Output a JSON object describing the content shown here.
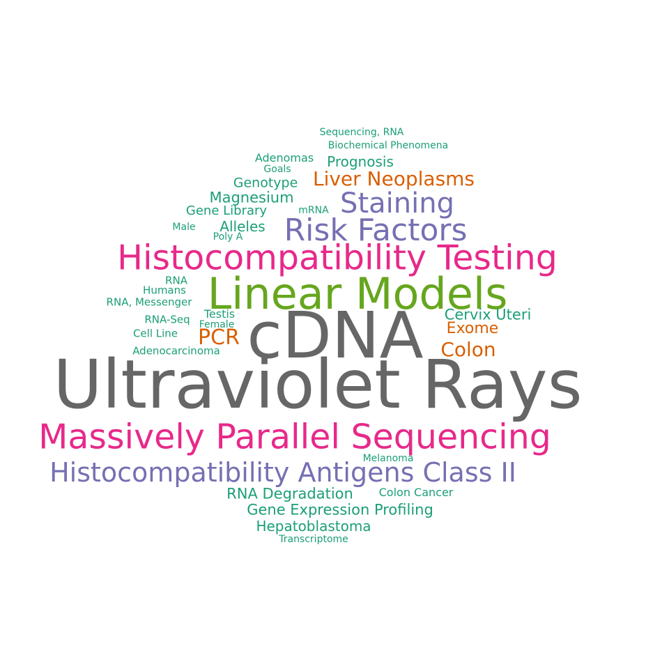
{
  "colors": {
    "gray": "#666666",
    "green": "#66a61e",
    "magenta": "#e7298a",
    "purple": "#7570b3",
    "orange": "#d95f02",
    "teal": "#1b9e77"
  },
  "words": [
    {
      "text": "Ultraviolet Rays",
      "color": "gray"
    },
    {
      "text": "cDNA",
      "color": "gray"
    },
    {
      "text": "Linear Models",
      "color": "green"
    },
    {
      "text": "Histocompatibility Testing",
      "color": "magenta"
    },
    {
      "text": "Massively Parallel Sequencing",
      "color": "magenta"
    },
    {
      "text": "Histocompatibility Antigens Class II",
      "color": "purple"
    },
    {
      "text": "Risk Factors",
      "color": "purple"
    },
    {
      "text": "Staining",
      "color": "purple"
    },
    {
      "text": "Liver Neoplasms",
      "color": "orange"
    },
    {
      "text": "PCR",
      "color": "orange"
    },
    {
      "text": "Colon",
      "color": "orange"
    },
    {
      "text": "Exome",
      "color": "orange"
    },
    {
      "text": "Cervix Uteri",
      "color": "teal"
    },
    {
      "text": "Magnesium",
      "color": "teal"
    },
    {
      "text": "Prognosis",
      "color": "teal"
    },
    {
      "text": "Genotype",
      "color": "teal"
    },
    {
      "text": "Gene Library",
      "color": "teal"
    },
    {
      "text": "Alleles",
      "color": "teal"
    },
    {
      "text": "Adenomas",
      "color": "teal"
    },
    {
      "text": "RNA Degradation",
      "color": "teal"
    },
    {
      "text": "Gene Expression Profiling",
      "color": "teal"
    },
    {
      "text": "Hepatoblastoma",
      "color": "teal"
    },
    {
      "text": "Colon Cancer",
      "color": "teal"
    },
    {
      "text": "Testis",
      "color": "teal"
    },
    {
      "text": "Sequencing, RNA",
      "color": "teal"
    },
    {
      "text": "Biochemical Phenomena",
      "color": "teal"
    },
    {
      "text": "Goals",
      "color": "teal"
    },
    {
      "text": "mRNA",
      "color": "teal"
    },
    {
      "text": "Male",
      "color": "teal"
    },
    {
      "text": "Poly A",
      "color": "teal"
    },
    {
      "text": "RNA",
      "color": "teal"
    },
    {
      "text": "Humans",
      "color": "teal"
    },
    {
      "text": "RNA, Messenger",
      "color": "teal"
    },
    {
      "text": "RNA-Seq",
      "color": "teal"
    },
    {
      "text": "Female",
      "color": "teal"
    },
    {
      "text": "Cell Line",
      "color": "teal"
    },
    {
      "text": "Adenocarcinoma",
      "color": "teal"
    },
    {
      "text": "Melanoma",
      "color": "teal"
    },
    {
      "text": "Transcriptome",
      "color": "teal"
    }
  ]
}
